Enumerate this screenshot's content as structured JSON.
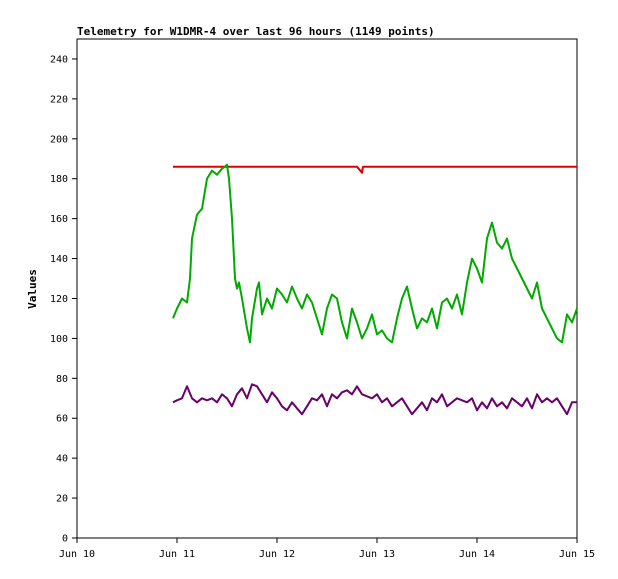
{
  "chart_data": {
    "type": "line",
    "title": "Telemetry for W1DMR-4 over last 96 hours (1149 points)",
    "xlabel": "",
    "ylabel": "Values",
    "xlim": [
      0,
      5
    ],
    "ylim": [
      0,
      250
    ],
    "x_ticks": [
      {
        "value": 0,
        "label": "Jun 10"
      },
      {
        "value": 1,
        "label": "Jun 11"
      },
      {
        "value": 2,
        "label": "Jun 12"
      },
      {
        "value": 3,
        "label": "Jun 13"
      },
      {
        "value": 4,
        "label": "Jun 14"
      },
      {
        "value": 5,
        "label": "Jun 15"
      }
    ],
    "y_ticks": [
      0,
      20,
      40,
      60,
      80,
      100,
      120,
      140,
      160,
      180,
      200,
      220,
      240
    ],
    "grid": false,
    "series": [
      {
        "color": "#dd0000",
        "x": [
          0.96,
          1.5,
          1.8,
          2.4,
          2.8,
          2.85,
          2.86,
          2.9,
          3.0,
          3.5,
          3.8,
          3.9,
          4.5,
          4.8,
          5.0
        ],
        "y": [
          186,
          186,
          186,
          186,
          186,
          183,
          186,
          186,
          186,
          186,
          186,
          186,
          186,
          186,
          186
        ]
      },
      {
        "color": "#00aa00",
        "x": [
          0.96,
          1.0,
          1.05,
          1.1,
          1.13,
          1.15,
          1.2,
          1.25,
          1.3,
          1.35,
          1.4,
          1.45,
          1.48,
          1.5,
          1.52,
          1.55,
          1.58,
          1.6,
          1.62,
          1.65,
          1.7,
          1.73,
          1.75,
          1.8,
          1.82,
          1.85,
          1.9,
          1.95,
          2.0,
          2.05,
          2.1,
          2.15,
          2.2,
          2.25,
          2.3,
          2.35,
          2.4,
          2.45,
          2.5,
          2.55,
          2.6,
          2.65,
          2.7,
          2.75,
          2.8,
          2.85,
          2.9,
          2.95,
          3.0,
          3.05,
          3.1,
          3.15,
          3.2,
          3.25,
          3.3,
          3.35,
          3.4,
          3.45,
          3.5,
          3.55,
          3.6,
          3.65,
          3.7,
          3.75,
          3.8,
          3.85,
          3.9,
          3.95,
          4.0,
          4.05,
          4.1,
          4.15,
          4.2,
          4.25,
          4.3,
          4.35,
          4.4,
          4.45,
          4.5,
          4.55,
          4.6,
          4.65,
          4.7,
          4.75,
          4.8,
          4.85,
          4.9,
          4.95,
          5.0
        ],
        "y": [
          110,
          115,
          120,
          118,
          130,
          150,
          162,
          165,
          180,
          184,
          182,
          185,
          186,
          187,
          180,
          160,
          130,
          125,
          128,
          120,
          105,
          98,
          110,
          125,
          128,
          112,
          120,
          115,
          125,
          122,
          118,
          126,
          120,
          115,
          122,
          118,
          110,
          102,
          115,
          122,
          120,
          108,
          100,
          115,
          108,
          100,
          105,
          112,
          102,
          104,
          100,
          98,
          110,
          120,
          126,
          115,
          105,
          110,
          108,
          115,
          105,
          118,
          120,
          115,
          122,
          112,
          128,
          140,
          135,
          128,
          150,
          158,
          148,
          145,
          150,
          140,
          135,
          130,
          125,
          120,
          128,
          115,
          110,
          105,
          100,
          98,
          112,
          108,
          115
        ]
      },
      {
        "color": "#6a006a",
        "x": [
          0.96,
          1.0,
          1.05,
          1.1,
          1.15,
          1.2,
          1.25,
          1.3,
          1.35,
          1.4,
          1.45,
          1.5,
          1.55,
          1.6,
          1.65,
          1.7,
          1.75,
          1.8,
          1.85,
          1.9,
          1.95,
          2.0,
          2.05,
          2.1,
          2.15,
          2.2,
          2.25,
          2.3,
          2.35,
          2.4,
          2.45,
          2.5,
          2.55,
          2.6,
          2.65,
          2.7,
          2.75,
          2.8,
          2.85,
          2.9,
          2.95,
          3.0,
          3.05,
          3.1,
          3.15,
          3.2,
          3.25,
          3.3,
          3.35,
          3.4,
          3.45,
          3.5,
          3.55,
          3.6,
          3.65,
          3.7,
          3.75,
          3.8,
          3.85,
          3.9,
          3.95,
          4.0,
          4.05,
          4.1,
          4.15,
          4.2,
          4.25,
          4.3,
          4.35,
          4.4,
          4.45,
          4.5,
          4.55,
          4.6,
          4.65,
          4.7,
          4.75,
          4.8,
          4.85,
          4.9,
          4.95,
          5.0
        ],
        "y": [
          68,
          69,
          70,
          76,
          70,
          68,
          70,
          69,
          70,
          68,
          72,
          70,
          66,
          72,
          75,
          70,
          77,
          76,
          72,
          68,
          73,
          70,
          66,
          64,
          68,
          65,
          62,
          66,
          70,
          69,
          72,
          66,
          72,
          70,
          73,
          74,
          72,
          76,
          72,
          71,
          70,
          72,
          68,
          70,
          66,
          68,
          70,
          66,
          62,
          65,
          68,
          64,
          70,
          68,
          72,
          66,
          68,
          70,
          69,
          68,
          70,
          64,
          68,
          65,
          70,
          66,
          68,
          65,
          70,
          68,
          66,
          70,
          65,
          72,
          68,
          70,
          68,
          70,
          66,
          62,
          68,
          68
        ]
      }
    ]
  }
}
